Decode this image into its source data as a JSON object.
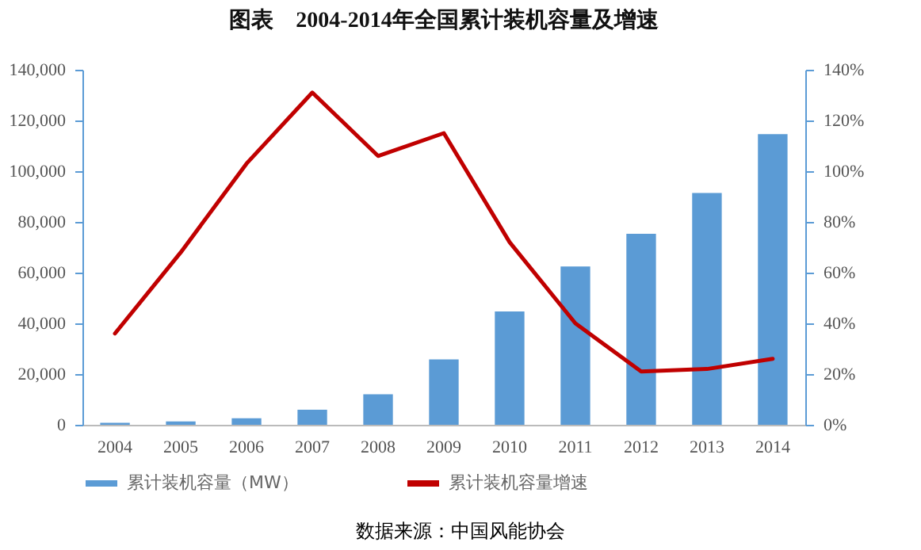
{
  "chart_data": {
    "type": "bar",
    "title": "图表　2004-2014年全国累计装机容量及增速",
    "categories": [
      "2004",
      "2005",
      "2006",
      "2007",
      "2008",
      "2009",
      "2010",
      "2011",
      "2012",
      "2013",
      "2014"
    ],
    "series": [
      {
        "name": "累计装机容量（MW）",
        "color": "#5b9bd5",
        "values": [
          800,
          1300,
          2600,
          5900,
          12000,
          25800,
          44700,
          62400,
          75300,
          91400,
          114600
        ]
      },
      {
        "name": "累计装机容量增速",
        "type": "line",
        "axis": "y2",
        "color": "#c00000",
        "values": [
          36,
          68,
          103,
          131,
          106,
          115,
          72,
          40,
          21,
          22,
          26
        ]
      }
    ],
    "ylim": [
      0,
      140000
    ],
    "yticks": [
      0,
      {
        "value": 20000,
        "label": "20,000"
      },
      {
        "value": 40000,
        "label": "40,000"
      },
      {
        "value": 60000,
        "label": "60,000"
      },
      {
        "value": 80000,
        "label": "80,000"
      },
      {
        "value": 100000,
        "label": "100,000"
      },
      {
        "value": 120000,
        "label": "120,000"
      },
      {
        "value": 140000,
        "label": "140,000"
      }
    ],
    "y2lim": [
      0,
      140
    ],
    "y2ticks": [
      {
        "value": 0,
        "label": "0%"
      },
      {
        "value": 20,
        "label": "20%"
      },
      {
        "value": 40,
        "label": "40%"
      },
      {
        "value": 60,
        "label": "60%"
      },
      {
        "value": 80,
        "label": "80%"
      },
      {
        "value": 100,
        "label": "100%"
      },
      {
        "value": 120,
        "label": "120%"
      },
      {
        "value": 140,
        "label": "140%"
      }
    ],
    "grid": false,
    "legend": "bottom",
    "marker": "none",
    "line_style": "solid",
    "annotations": [
      "数据来源：中国风能协会"
    ]
  }
}
